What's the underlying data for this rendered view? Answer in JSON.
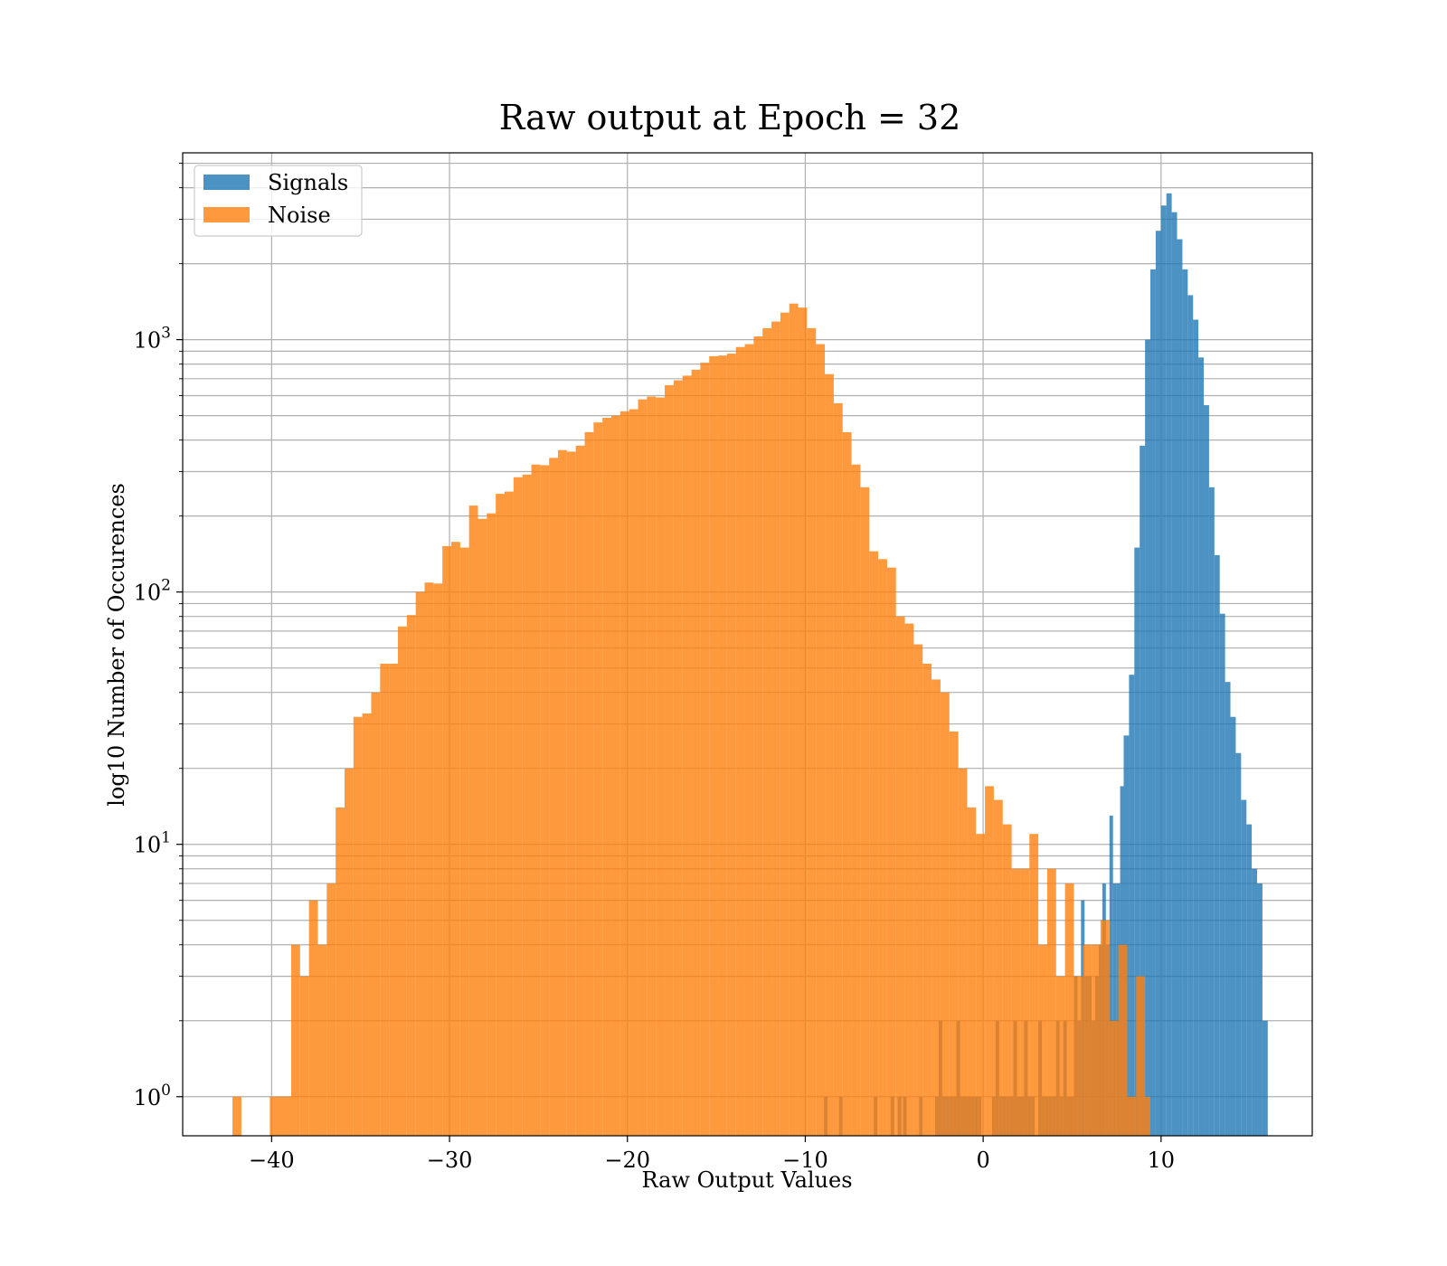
{
  "chart_data": {
    "type": "bar",
    "title": "Raw output at Epoch = 32",
    "xlabel": "Raw Output Values",
    "ylabel": "log10 Number of Occurences",
    "xlim": [
      -45,
      18.5
    ],
    "ylim": [
      0.7,
      5500
    ],
    "yscale": "log",
    "xticks": [
      {
        "value": -40,
        "label": "−40"
      },
      {
        "value": -30,
        "label": "−30"
      },
      {
        "value": -20,
        "label": "−20"
      },
      {
        "value": -10,
        "label": "−10"
      },
      {
        "value": 0,
        "label": "0"
      },
      {
        "value": 10,
        "label": "10"
      }
    ],
    "yticks": [
      {
        "value": 1,
        "base": "10",
        "exp": "0"
      },
      {
        "value": 10,
        "base": "10",
        "exp": "1"
      },
      {
        "value": 100,
        "base": "10",
        "exp": "2"
      },
      {
        "value": 1000,
        "base": "10",
        "exp": "3"
      }
    ],
    "grid": true,
    "legend_position": "top-left",
    "series": [
      {
        "name": "Signals",
        "color": "#1f77b4",
        "bins": [
          [
            -8.95,
            -8.75,
            1
          ],
          [
            -8.1,
            -7.9,
            1
          ],
          [
            -6.15,
            -5.95,
            1
          ],
          [
            -5.2,
            -5.0,
            1
          ],
          [
            -4.8,
            -4.6,
            1
          ],
          [
            -4.5,
            -4.3,
            1
          ],
          [
            -3.6,
            -3.4,
            1
          ],
          [
            -2.7,
            -2.5,
            1
          ],
          [
            -2.5,
            -2.3,
            2
          ],
          [
            -2.3,
            -2.1,
            1
          ],
          [
            -2.1,
            -1.9,
            1
          ],
          [
            -1.9,
            -1.7,
            1
          ],
          [
            -1.7,
            -1.5,
            1
          ],
          [
            -1.5,
            -1.3,
            2
          ],
          [
            -1.3,
            -1.1,
            1
          ],
          [
            -1.1,
            -0.9,
            1
          ],
          [
            -0.9,
            -0.7,
            1
          ],
          [
            -0.7,
            -0.5,
            1
          ],
          [
            -0.5,
            -0.3,
            1
          ],
          [
            -0.3,
            -0.1,
            1
          ],
          [
            0.5,
            0.7,
            1
          ],
          [
            0.7,
            0.9,
            2
          ],
          [
            0.9,
            1.1,
            1
          ],
          [
            1.1,
            1.3,
            1
          ],
          [
            1.3,
            1.5,
            1
          ],
          [
            1.5,
            1.7,
            1
          ],
          [
            1.7,
            1.9,
            2
          ],
          [
            1.9,
            2.1,
            1
          ],
          [
            2.1,
            2.3,
            1
          ],
          [
            2.3,
            2.5,
            2
          ],
          [
            2.5,
            2.7,
            1
          ],
          [
            2.7,
            2.9,
            1
          ],
          [
            3.1,
            3.3,
            2
          ],
          [
            3.3,
            3.5,
            1
          ],
          [
            3.5,
            3.7,
            1
          ],
          [
            3.7,
            3.9,
            1
          ],
          [
            3.9,
            4.1,
            1
          ],
          [
            4.1,
            4.3,
            2
          ],
          [
            4.3,
            4.5,
            1
          ],
          [
            4.5,
            4.7,
            2
          ],
          [
            4.7,
            4.9,
            1
          ],
          [
            4.9,
            5.1,
            1
          ],
          [
            5.1,
            5.3,
            3
          ],
          [
            5.3,
            5.5,
            2
          ],
          [
            5.5,
            5.7,
            6
          ],
          [
            5.7,
            5.9,
            3
          ],
          [
            5.9,
            6.1,
            3
          ],
          [
            6.1,
            6.3,
            2
          ],
          [
            6.3,
            6.5,
            3
          ],
          [
            6.5,
            6.7,
            4
          ],
          [
            6.7,
            6.9,
            7
          ],
          [
            6.9,
            7.1,
            4
          ],
          [
            7.1,
            7.3,
            13
          ],
          [
            7.3,
            7.5,
            7
          ],
          [
            7.5,
            7.7,
            7
          ],
          [
            7.7,
            7.9,
            17
          ],
          [
            7.9,
            8.2,
            27
          ],
          [
            8.2,
            8.5,
            47
          ],
          [
            8.5,
            8.8,
            150
          ],
          [
            8.8,
            9.1,
            380
          ],
          [
            9.1,
            9.4,
            1000
          ],
          [
            9.4,
            9.7,
            1900
          ],
          [
            9.7,
            10.0,
            2700
          ],
          [
            10.0,
            10.3,
            3400
          ],
          [
            10.3,
            10.6,
            3800
          ],
          [
            10.6,
            10.9,
            3200
          ],
          [
            10.9,
            11.2,
            2500
          ],
          [
            11.2,
            11.5,
            1900
          ],
          [
            11.5,
            11.8,
            1500
          ],
          [
            11.8,
            12.1,
            1200
          ],
          [
            12.1,
            12.4,
            850
          ],
          [
            12.4,
            12.7,
            550
          ],
          [
            12.7,
            13.0,
            260
          ],
          [
            13.0,
            13.3,
            140
          ],
          [
            13.3,
            13.6,
            82
          ],
          [
            13.6,
            13.9,
            44
          ],
          [
            13.9,
            14.2,
            32
          ],
          [
            14.2,
            14.5,
            23
          ],
          [
            14.5,
            14.8,
            15
          ],
          [
            14.8,
            15.1,
            12
          ],
          [
            15.1,
            15.4,
            8
          ],
          [
            15.4,
            15.7,
            7
          ],
          [
            15.7,
            16.0,
            2
          ]
        ]
      },
      {
        "name": "Noise",
        "color": "#ff7f0e",
        "bins": [
          [
            -42.2,
            -41.7,
            1
          ],
          [
            -40.1,
            -38.9,
            1
          ],
          [
            -38.9,
            -38.4,
            4
          ],
          [
            -38.4,
            -37.9,
            3
          ],
          [
            -37.9,
            -37.4,
            6
          ],
          [
            -37.4,
            -36.9,
            4
          ],
          [
            -36.9,
            -36.4,
            7
          ],
          [
            -36.4,
            -35.9,
            14
          ],
          [
            -35.9,
            -35.4,
            20
          ],
          [
            -35.4,
            -34.9,
            32
          ],
          [
            -34.9,
            -34.4,
            33
          ],
          [
            -34.4,
            -33.9,
            40
          ],
          [
            -33.9,
            -33.4,
            52
          ],
          [
            -33.4,
            -32.9,
            52
          ],
          [
            -32.9,
            -32.4,
            73
          ],
          [
            -32.4,
            -31.9,
            81
          ],
          [
            -31.9,
            -31.4,
            100
          ],
          [
            -31.4,
            -30.9,
            109
          ],
          [
            -30.9,
            -30.4,
            108
          ],
          [
            -30.4,
            -29.9,
            152
          ],
          [
            -29.9,
            -29.4,
            158
          ],
          [
            -29.4,
            -28.9,
            150
          ],
          [
            -28.9,
            -28.4,
            220
          ],
          [
            -28.4,
            -27.9,
            195
          ],
          [
            -27.9,
            -27.4,
            205
          ],
          [
            -27.4,
            -26.9,
            245
          ],
          [
            -26.9,
            -26.4,
            250
          ],
          [
            -26.4,
            -25.9,
            285
          ],
          [
            -25.9,
            -25.4,
            292
          ],
          [
            -25.4,
            -24.9,
            320
          ],
          [
            -24.9,
            -24.4,
            318
          ],
          [
            -24.4,
            -23.9,
            340
          ],
          [
            -23.9,
            -23.4,
            365
          ],
          [
            -23.4,
            -22.9,
            360
          ],
          [
            -22.9,
            -22.4,
            380
          ],
          [
            -22.4,
            -21.9,
            430
          ],
          [
            -21.9,
            -21.4,
            470
          ],
          [
            -21.4,
            -20.9,
            490
          ],
          [
            -20.9,
            -20.4,
            500
          ],
          [
            -20.4,
            -19.9,
            520
          ],
          [
            -19.9,
            -19.4,
            530
          ],
          [
            -19.4,
            -18.9,
            580
          ],
          [
            -18.9,
            -18.4,
            595
          ],
          [
            -18.4,
            -17.9,
            590
          ],
          [
            -17.9,
            -17.4,
            660
          ],
          [
            -17.4,
            -16.9,
            690
          ],
          [
            -16.9,
            -16.4,
            720
          ],
          [
            -16.4,
            -15.9,
            760
          ],
          [
            -15.9,
            -15.4,
            810
          ],
          [
            -15.4,
            -14.9,
            860
          ],
          [
            -14.9,
            -14.4,
            865
          ],
          [
            -14.4,
            -13.9,
            880
          ],
          [
            -13.9,
            -13.4,
            935
          ],
          [
            -13.4,
            -12.9,
            960
          ],
          [
            -12.9,
            -12.4,
            1030
          ],
          [
            -12.4,
            -11.9,
            1110
          ],
          [
            -11.9,
            -11.4,
            1180
          ],
          [
            -11.4,
            -10.9,
            1280
          ],
          [
            -10.9,
            -10.4,
            1390
          ],
          [
            -10.4,
            -9.9,
            1340
          ],
          [
            -9.9,
            -9.4,
            1110
          ],
          [
            -9.4,
            -8.9,
            960
          ],
          [
            -8.9,
            -8.4,
            730
          ],
          [
            -8.4,
            -7.9,
            560
          ],
          [
            -7.9,
            -7.4,
            430
          ],
          [
            -7.4,
            -6.9,
            320
          ],
          [
            -6.9,
            -6.4,
            260
          ],
          [
            -6.4,
            -5.9,
            145
          ],
          [
            -5.9,
            -5.4,
            135
          ],
          [
            -5.4,
            -4.9,
            125
          ],
          [
            -4.9,
            -4.4,
            80
          ],
          [
            -4.4,
            -3.9,
            75
          ],
          [
            -3.9,
            -3.4,
            62
          ],
          [
            -3.4,
            -2.9,
            52
          ],
          [
            -2.9,
            -2.4,
            45
          ],
          [
            -2.4,
            -1.9,
            40
          ],
          [
            -1.9,
            -1.4,
            28
          ],
          [
            -1.4,
            -0.9,
            20
          ],
          [
            -0.9,
            -0.4,
            14
          ],
          [
            -0.4,
            0.1,
            11
          ],
          [
            0.1,
            0.6,
            17
          ],
          [
            0.6,
            1.1,
            15
          ],
          [
            1.1,
            1.6,
            12
          ],
          [
            1.6,
            2.1,
            8
          ],
          [
            2.1,
            2.6,
            8
          ],
          [
            2.6,
            3.1,
            11
          ],
          [
            3.1,
            3.6,
            4
          ],
          [
            3.6,
            4.1,
            8
          ],
          [
            4.1,
            4.6,
            3
          ],
          [
            4.6,
            5.1,
            7
          ],
          [
            5.1,
            5.6,
            3
          ],
          [
            5.6,
            6.1,
            4
          ],
          [
            6.1,
            6.6,
            4
          ],
          [
            6.6,
            7.1,
            5
          ],
          [
            7.1,
            7.6,
            2
          ],
          [
            7.6,
            8.1,
            4
          ],
          [
            8.1,
            8.6,
            1
          ],
          [
            8.6,
            9.1,
            3
          ],
          [
            9.1,
            9.4,
            1
          ]
        ]
      }
    ]
  }
}
